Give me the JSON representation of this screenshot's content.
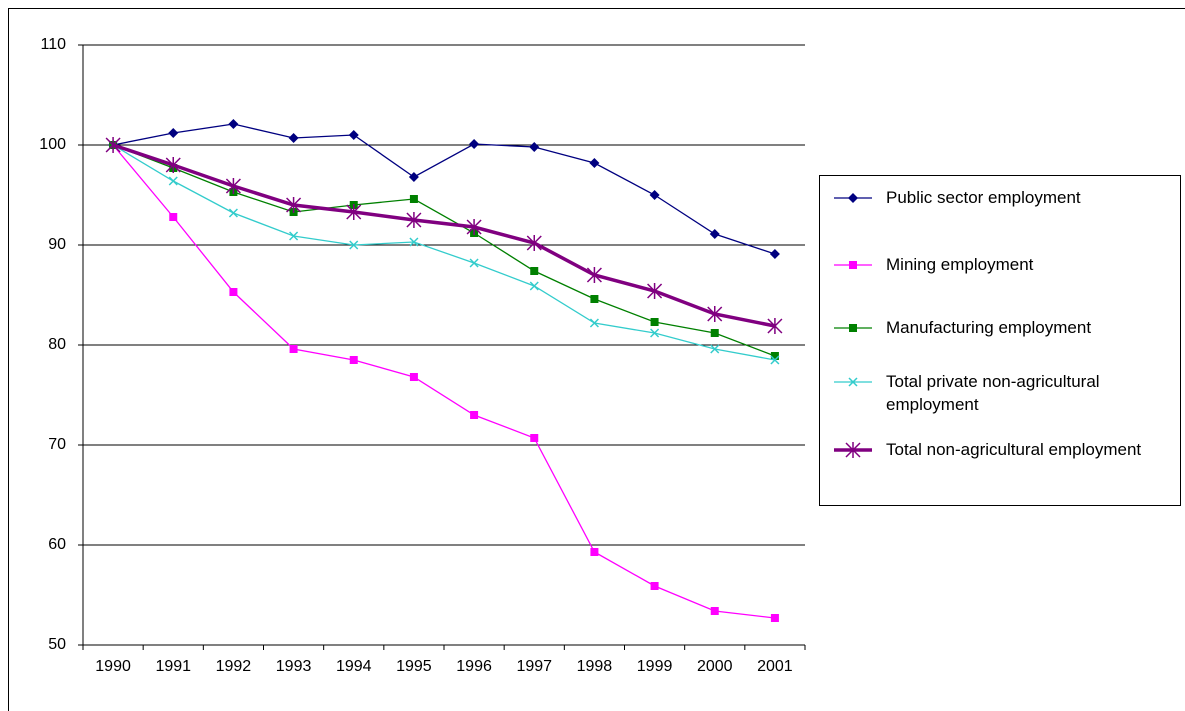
{
  "chart_data": {
    "type": "line",
    "categories": [
      "1990",
      "1991",
      "1992",
      "1993",
      "1994",
      "1995",
      "1996",
      "1997",
      "1998",
      "1999",
      "2000",
      "2001"
    ],
    "series": [
      {
        "name": "Public sector employment",
        "color": "#000080",
        "marker": "diamond",
        "line_width": 1.3,
        "values": [
          100,
          101.2,
          102.1,
          100.7,
          101.0,
          96.8,
          100.1,
          99.8,
          98.2,
          95.0,
          91.1,
          89.1
        ]
      },
      {
        "name": "Mining employment",
        "color": "#ff00ff",
        "marker": "square",
        "line_width": 1.3,
        "values": [
          100,
          92.8,
          85.3,
          79.6,
          78.5,
          76.8,
          73.0,
          70.7,
          59.3,
          55.9,
          53.4,
          52.7
        ]
      },
      {
        "name": "Manufacturing employment",
        "color": "#008000",
        "marker": "square",
        "line_width": 1.3,
        "values": [
          100,
          97.7,
          95.3,
          93.3,
          94.0,
          94.6,
          91.2,
          87.4,
          84.6,
          82.3,
          81.2,
          78.9
        ]
      },
      {
        "name": "Total private non-agricultural employment",
        "color": "#33cccc",
        "marker": "x",
        "line_width": 1.3,
        "values": [
          100,
          96.4,
          93.2,
          90.9,
          90.0,
          90.3,
          88.2,
          85.9,
          82.2,
          81.2,
          79.6,
          78.5
        ]
      },
      {
        "name": "Total non-agricultural employment",
        "color": "#800080",
        "marker": "asterisk",
        "line_width": 3.5,
        "values": [
          100,
          98.0,
          95.9,
          94.0,
          93.3,
          92.5,
          91.8,
          90.2,
          87.0,
          85.4,
          83.1,
          81.9
        ]
      }
    ],
    "ylim": [
      50,
      110
    ],
    "yticks": [
      50,
      60,
      70,
      80,
      90,
      100,
      110
    ],
    "grid": true,
    "legend": "right"
  }
}
